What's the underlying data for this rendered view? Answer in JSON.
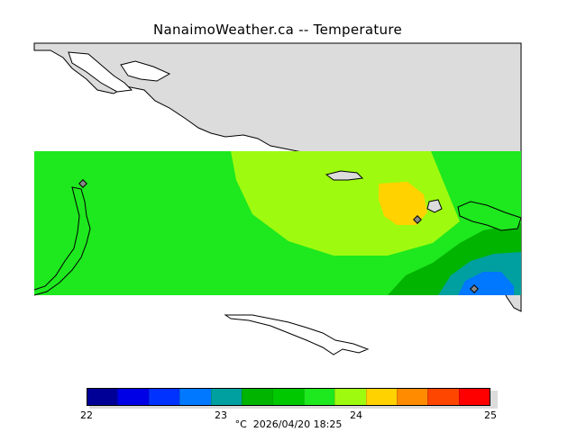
{
  "title": "NanaimoWeather.ca -- Temperature",
  "colors": {
    "land": "#dcdcdc",
    "water_bg": "#ffffff",
    "field_base": "#1ee81e",
    "field_warm": "#9efb0f",
    "field_hot": "#ffd200",
    "field_cool": "#00b400",
    "field_cold1": "#00a0a0",
    "field_cold2": "#0078ff",
    "field_cold3": "#0040ff",
    "coast": "#000000",
    "station_marker": "#888888"
  },
  "colorbar": {
    "segments": [
      "#000096",
      "#0000e6",
      "#0032ff",
      "#0078ff",
      "#00a0a0",
      "#00b400",
      "#00c800",
      "#1ee81e",
      "#9efb0f",
      "#ffd200",
      "#ff8c00",
      "#ff4600",
      "#ff0000"
    ],
    "ticks": [
      "22",
      "23",
      "24",
      "25"
    ]
  },
  "footer": {
    "unit": "°C",
    "timestamp": "2026/04/20 18:25"
  }
}
